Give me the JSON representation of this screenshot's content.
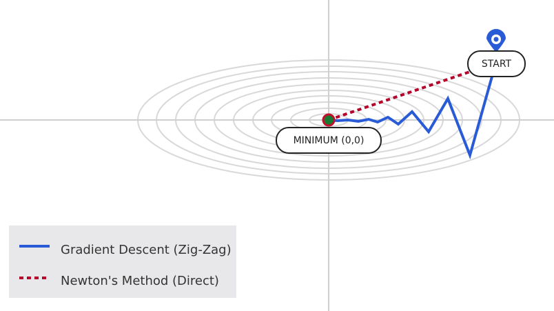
{
  "labels": {
    "start": "START",
    "minimum": "MINIMUM (0,0)"
  },
  "legend": {
    "items": [
      {
        "label": "Gradient Descent (Zig-Zag)"
      },
      {
        "label": "Newton's Method (Direct)"
      }
    ]
  }
}
